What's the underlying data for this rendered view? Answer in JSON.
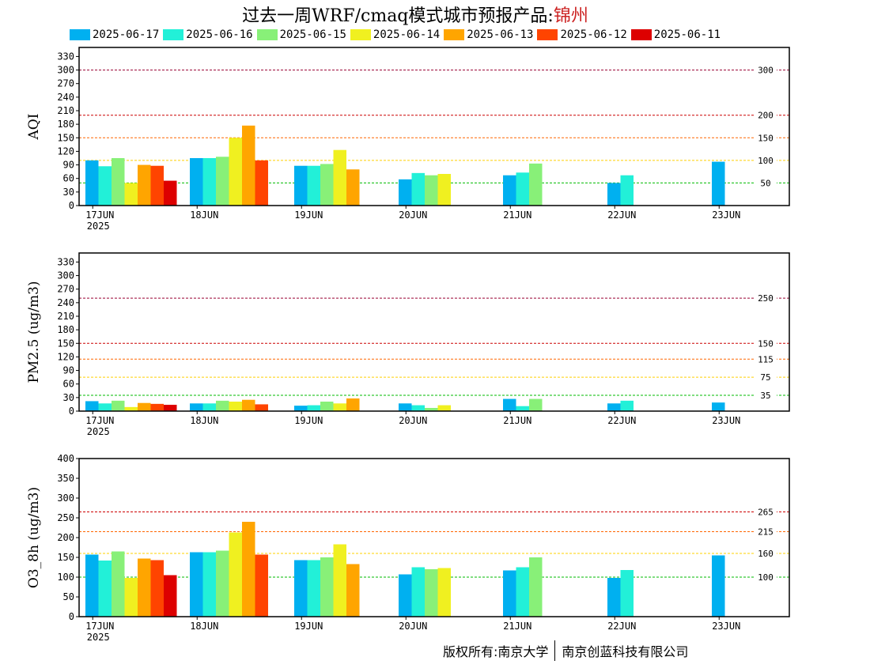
{
  "header": {
    "title_prefix": "过去一周WRF/cmaq模式城市预报产品:",
    "city": "锦州"
  },
  "footer": {
    "left": "版权所有:南京大学",
    "right": "南京创蓝科技有限公司"
  },
  "legend": [
    {
      "label": "2025-06-17",
      "color": "#00b0f0"
    },
    {
      "label": "2025-06-16",
      "color": "#22f0d8"
    },
    {
      "label": "2025-06-15",
      "color": "#88f078"
    },
    {
      "label": "2025-06-14",
      "color": "#f0f020"
    },
    {
      "label": "2025-06-13",
      "color": "#ffa500"
    },
    {
      "label": "2025-06-12",
      "color": "#ff4400"
    },
    {
      "label": "2025-06-11",
      "color": "#dd0000"
    }
  ],
  "chart_data": [
    {
      "type": "bar",
      "ylabel": "AQI",
      "ylim": [
        0,
        350
      ],
      "yticks": [
        0,
        30,
        60,
        90,
        120,
        150,
        180,
        210,
        240,
        270,
        300,
        330
      ],
      "categories": [
        "17JUN",
        "18JUN",
        "19JUN",
        "20JUN",
        "21JUN",
        "22JUN",
        "23JUN"
      ],
      "first_category_sublabel": "2025",
      "thresholds": [
        {
          "value": 300,
          "label": "300",
          "color": "#990033"
        },
        {
          "value": 200,
          "label": "200",
          "color": "#cc0000"
        },
        {
          "value": 150,
          "label": "150",
          "color": "#ff6600"
        },
        {
          "value": 100,
          "label": "100",
          "color": "#ffd000"
        },
        {
          "value": 50,
          "label": "50",
          "color": "#00bb00"
        }
      ],
      "series": [
        {
          "name": "2025-06-17",
          "values": [
            100,
            105,
            88,
            58,
            67,
            50,
            97
          ]
        },
        {
          "name": "2025-06-16",
          "values": [
            87,
            105,
            88,
            72,
            73,
            67,
            null
          ]
        },
        {
          "name": "2025-06-15",
          "values": [
            105,
            108,
            92,
            67,
            93,
            null,
            null
          ]
        },
        {
          "name": "2025-06-14",
          "values": [
            50,
            150,
            123,
            70,
            null,
            null,
            null
          ]
        },
        {
          "name": "2025-06-13",
          "values": [
            90,
            177,
            80,
            null,
            null,
            null,
            null
          ]
        },
        {
          "name": "2025-06-12",
          "values": [
            88,
            100,
            null,
            null,
            null,
            null,
            null
          ]
        },
        {
          "name": "2025-06-11",
          "values": [
            55,
            null,
            null,
            null,
            null,
            null,
            null
          ]
        }
      ]
    },
    {
      "type": "bar",
      "ylabel": "PM2.5 (ug/m3)",
      "ylim": [
        0,
        350
      ],
      "yticks": [
        0,
        30,
        60,
        90,
        120,
        150,
        180,
        210,
        240,
        270,
        300,
        330
      ],
      "categories": [
        "17JUN",
        "18JUN",
        "19JUN",
        "20JUN",
        "21JUN",
        "22JUN",
        "23JUN"
      ],
      "first_category_sublabel": "2025",
      "thresholds": [
        {
          "value": 250,
          "label": "250",
          "color": "#990033"
        },
        {
          "value": 150,
          "label": "150",
          "color": "#cc0000"
        },
        {
          "value": 115,
          "label": "115",
          "color": "#ff6600"
        },
        {
          "value": 75,
          "label": "75",
          "color": "#ffd000"
        },
        {
          "value": 35,
          "label": "35",
          "color": "#00bb00"
        }
      ],
      "series": [
        {
          "name": "2025-06-17",
          "values": [
            22,
            17,
            12,
            17,
            27,
            17,
            19
          ]
        },
        {
          "name": "2025-06-16",
          "values": [
            17,
            17,
            13,
            13,
            11,
            23,
            null
          ]
        },
        {
          "name": "2025-06-15",
          "values": [
            23,
            23,
            21,
            7,
            27,
            null,
            null
          ]
        },
        {
          "name": "2025-06-14",
          "values": [
            9,
            21,
            17,
            13,
            null,
            null,
            null
          ]
        },
        {
          "name": "2025-06-13",
          "values": [
            18,
            25,
            28,
            null,
            null,
            null,
            null
          ]
        },
        {
          "name": "2025-06-12",
          "values": [
            16,
            15,
            null,
            null,
            null,
            null,
            null
          ]
        },
        {
          "name": "2025-06-11",
          "values": [
            14,
            null,
            null,
            null,
            null,
            null,
            null
          ]
        }
      ]
    },
    {
      "type": "bar",
      "ylabel": "O3_8h (ug/m3)",
      "ylim": [
        0,
        400
      ],
      "yticks": [
        0,
        50,
        100,
        150,
        200,
        250,
        300,
        350,
        400
      ],
      "categories": [
        "17JUN",
        "18JUN",
        "19JUN",
        "20JUN",
        "21JUN",
        "22JUN",
        "23JUN"
      ],
      "first_category_sublabel": "2025",
      "thresholds": [
        {
          "value": 265,
          "label": "265",
          "color": "#cc0000"
        },
        {
          "value": 215,
          "label": "215",
          "color": "#ff6600"
        },
        {
          "value": 160,
          "label": "160",
          "color": "#ffd000"
        },
        {
          "value": 100,
          "label": "100",
          "color": "#00bb00"
        }
      ],
      "series": [
        {
          "name": "2025-06-17",
          "values": [
            157,
            163,
            143,
            107,
            117,
            98,
            155
          ]
        },
        {
          "name": "2025-06-16",
          "values": [
            142,
            163,
            143,
            125,
            125,
            118,
            null
          ]
        },
        {
          "name": "2025-06-15",
          "values": [
            165,
            167,
            150,
            120,
            150,
            null,
            null
          ]
        },
        {
          "name": "2025-06-14",
          "values": [
            98,
            213,
            183,
            123,
            null,
            null,
            null
          ]
        },
        {
          "name": "2025-06-13",
          "values": [
            147,
            240,
            133,
            null,
            null,
            null,
            null
          ]
        },
        {
          "name": "2025-06-12",
          "values": [
            143,
            157,
            null,
            null,
            null,
            null,
            null
          ]
        },
        {
          "name": "2025-06-11",
          "values": [
            105,
            null,
            null,
            null,
            null,
            null,
            null
          ]
        }
      ]
    }
  ]
}
